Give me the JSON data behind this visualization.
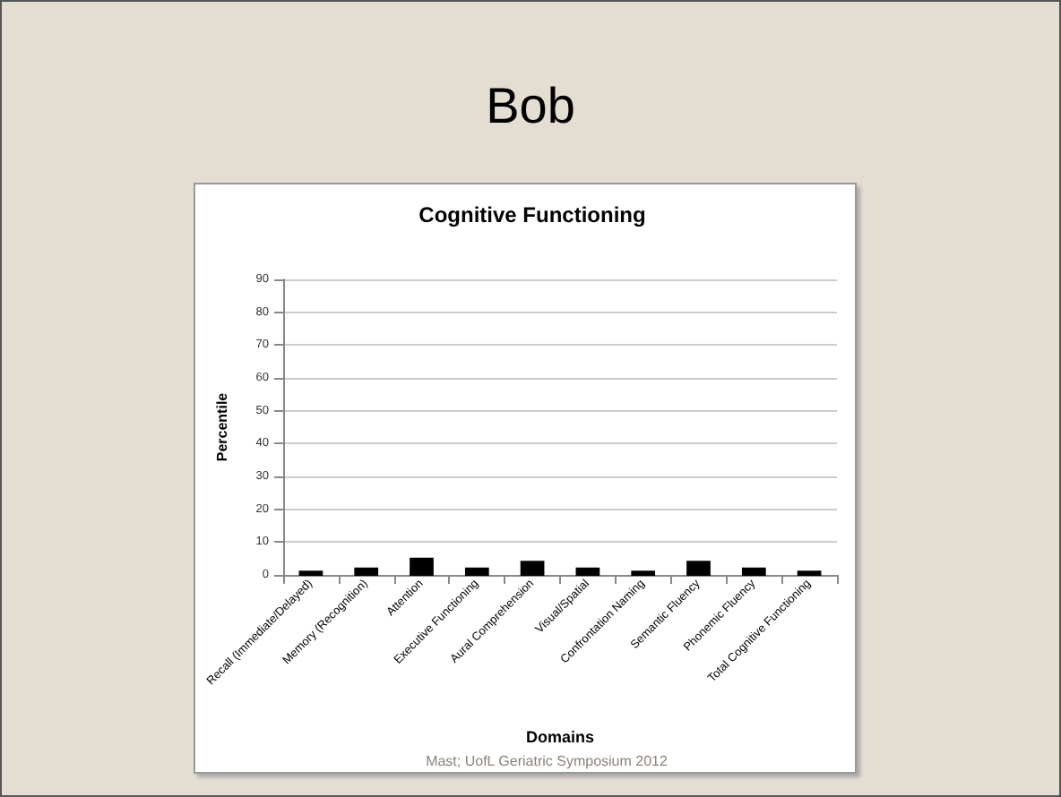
{
  "chart_data": {
    "type": "bar",
    "title": "Bob",
    "subtitle": "Cognitive Functioning",
    "xlabel": "Domains",
    "ylabel": "Percentile",
    "categories": [
      "Recall (Immediate/Delayed)",
      "Memory (Recognition)",
      "Attention",
      "Executive Functioning",
      "Aural Comprehension",
      "Visual/Spatial",
      "Confrontation Naming",
      "Semantic Fluency",
      "Phonemic Fluency",
      "Total Cognitive Functioning"
    ],
    "values": [
      1,
      2,
      5,
      2,
      4,
      2,
      1,
      4,
      2,
      1
    ],
    "color": "#000000",
    "ylim": [
      0,
      90
    ],
    "yticks": [
      0,
      10,
      20,
      30,
      40,
      50,
      60,
      70,
      80,
      90
    ],
    "grid": "y",
    "annotations": [
      "Mast; UofL Geriatric Symposium 2012"
    ]
  }
}
